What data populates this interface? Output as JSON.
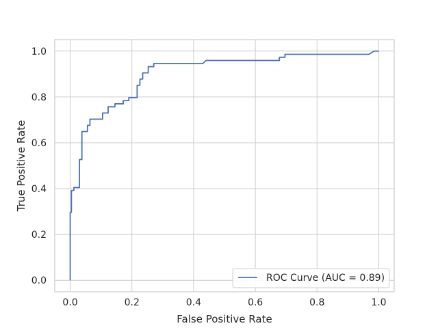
{
  "chart_data": {
    "type": "line",
    "title": "",
    "xlabel": "False Positive Rate",
    "ylabel": "True Positive Rate",
    "xlim": [
      -0.05,
      1.05
    ],
    "ylim": [
      -0.05,
      1.05
    ],
    "x_ticks": [
      0.0,
      0.2,
      0.4,
      0.6,
      0.8,
      1.0
    ],
    "x_tick_labels": [
      "0.0",
      "0.2",
      "0.4",
      "0.6",
      "0.8",
      "1.0"
    ],
    "y_ticks": [
      0.0,
      0.2,
      0.4,
      0.6,
      0.8,
      1.0
    ],
    "y_tick_labels": [
      "0.0",
      "0.2",
      "0.4",
      "0.6",
      "0.8",
      "1.0"
    ],
    "grid": true,
    "legend_position": "bottom-right",
    "series": [
      {
        "name": "ROC Curve (AUC = 0.89)",
        "color": "#4c72b0",
        "x": [
          0.0,
          0.0,
          0.004,
          0.004,
          0.012,
          0.012,
          0.03,
          0.03,
          0.038,
          0.038,
          0.056,
          0.056,
          0.064,
          0.064,
          0.105,
          0.105,
          0.123,
          0.123,
          0.145,
          0.145,
          0.172,
          0.172,
          0.19,
          0.19,
          0.217,
          0.217,
          0.226,
          0.226,
          0.235,
          0.235,
          0.253,
          0.253,
          0.271,
          0.271,
          0.31,
          0.31,
          0.43,
          0.44,
          0.678,
          0.678,
          0.696,
          0.696,
          0.968,
          0.985,
          1.0
        ],
        "y": [
          0.0,
          0.297,
          0.297,
          0.392,
          0.392,
          0.405,
          0.405,
          0.527,
          0.527,
          0.649,
          0.649,
          0.676,
          0.676,
          0.703,
          0.703,
          0.73,
          0.73,
          0.757,
          0.757,
          0.77,
          0.77,
          0.784,
          0.784,
          0.797,
          0.797,
          0.851,
          0.851,
          0.878,
          0.878,
          0.905,
          0.905,
          0.932,
          0.932,
          0.946,
          0.946,
          0.946,
          0.946,
          0.959,
          0.959,
          0.973,
          0.973,
          0.986,
          0.986,
          1.0,
          1.0
        ]
      }
    ]
  }
}
